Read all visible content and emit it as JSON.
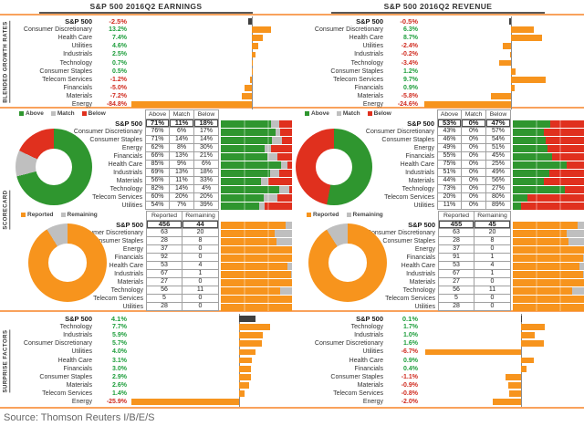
{
  "page": {
    "source_line": "Source: Thomson Reuters I/B/E/S",
    "sidebar": {
      "growth_label": "BLENDED GROWTH RATES",
      "scorecard_label": "SCORECARD",
      "surprise_label": "SURPRISE FACTORS"
    },
    "legends": {
      "scorecard": [
        "Above",
        "Match",
        "Below"
      ],
      "reported": [
        "Reported",
        "Remaining"
      ]
    },
    "colors": {
      "orange": "#F7941D",
      "dark": "#3F3F3F",
      "green": "#2F962F",
      "red": "#E0301E",
      "gray": "#BFBFBF",
      "divider": "#F9A25C",
      "text_green": "#1E9E3C",
      "text_red": "#D02B1F",
      "axis": "#8C8C8C",
      "border": "#A0A0A0"
    }
  },
  "chart_data": {
    "earnings": {
      "title": "S&P 500 2016Q2 EARNINGS",
      "growth": {
        "type": "bar",
        "xlabel": "Blended growth rate %",
        "xlim": [
          -85,
          27
        ],
        "rows": [
          {
            "label": "S&P 500",
            "v": -2.5
          },
          {
            "label": "Consumer Discretionary",
            "v": 13.2
          },
          {
            "label": "Health Care",
            "v": 7.4
          },
          {
            "label": "Utilities",
            "v": 4.6
          },
          {
            "label": "Industrials",
            "v": 2.5
          },
          {
            "label": "Technology",
            "v": 0.7
          },
          {
            "label": "Consumer Staples",
            "v": 0.5
          },
          {
            "label": "Telecom Services",
            "v": -1.2
          },
          {
            "label": "Financials",
            "v": -5.0
          },
          {
            "label": "Materials",
            "v": -7.2
          },
          {
            "label": "Energy",
            "v": -84.8
          }
        ]
      },
      "scorecard": {
        "type": "bar",
        "stacked": true,
        "headers": [
          "Above",
          "Match",
          "Below"
        ],
        "rows": [
          {
            "label": "S&P 500",
            "above": 71,
            "match": 11,
            "below": 18
          },
          {
            "label": "Consumer Discretionary",
            "above": 76,
            "match": 6,
            "below": 17
          },
          {
            "label": "Consumer Staples",
            "above": 71,
            "match": 14,
            "below": 14
          },
          {
            "label": "Energy",
            "above": 62,
            "match": 8,
            "below": 30
          },
          {
            "label": "Financials",
            "above": 66,
            "match": 13,
            "below": 21
          },
          {
            "label": "Health Care",
            "above": 85,
            "match": 9,
            "below": 6
          },
          {
            "label": "Industrials",
            "above": 69,
            "match": 13,
            "below": 18
          },
          {
            "label": "Materials",
            "above": 56,
            "match": 11,
            "below": 33
          },
          {
            "label": "Technology",
            "above": 82,
            "match": 14,
            "below": 4
          },
          {
            "label": "Telecom Services",
            "above": 60,
            "match": 20,
            "below": 20
          },
          {
            "label": "Utilities",
            "above": 54,
            "match": 7,
            "below": 39
          }
        ]
      },
      "reported": {
        "type": "bar",
        "stacked": true,
        "headers": [
          "Reported",
          "Remaining"
        ],
        "rows": [
          {
            "label": "S&P 500",
            "reported": 456,
            "remaining": 44
          },
          {
            "label": "Consumer Discretionary",
            "reported": 63,
            "remaining": 20
          },
          {
            "label": "Consumer Staples",
            "reported": 28,
            "remaining": 8
          },
          {
            "label": "Energy",
            "reported": 37,
            "remaining": 0
          },
          {
            "label": "Financials",
            "reported": 92,
            "remaining": 0
          },
          {
            "label": "Health Care",
            "reported": 53,
            "remaining": 4
          },
          {
            "label": "Industrials",
            "reported": 67,
            "remaining": 1
          },
          {
            "label": "Materials",
            "reported": 27,
            "remaining": 0
          },
          {
            "label": "Technology",
            "reported": 56,
            "remaining": 11
          },
          {
            "label": "Telecom Services",
            "reported": 5,
            "remaining": 0
          },
          {
            "label": "Utilities",
            "reported": 28,
            "remaining": 0
          }
        ]
      },
      "surprise": {
        "type": "bar",
        "xlabel": "Surprise factor %",
        "xlim": [
          -26,
          12.5
        ],
        "rows": [
          {
            "label": "S&P 500",
            "v": 4.1
          },
          {
            "label": "Technology",
            "v": 7.7
          },
          {
            "label": "Industrials",
            "v": 5.9
          },
          {
            "label": "Consumer Discretionary",
            "v": 5.7
          },
          {
            "label": "Utilities",
            "v": 4.0
          },
          {
            "label": "Health Care",
            "v": 3.1
          },
          {
            "label": "Financials",
            "v": 3.0
          },
          {
            "label": "Consumer Staples",
            "v": 2.9
          },
          {
            "label": "Materials",
            "v": 2.6
          },
          {
            "label": "Telecom Services",
            "v": 1.4
          },
          {
            "label": "Energy",
            "v": -25.9
          }
        ]
      }
    },
    "revenue": {
      "title": "S&P 500 2016Q2 REVENUE",
      "growth": {
        "type": "bar",
        "xlabel": "Blended growth rate %",
        "xlim": [
          -25,
          20
        ],
        "rows": [
          {
            "label": "S&P 500",
            "v": -0.5
          },
          {
            "label": "Consumer Discretionary",
            "v": 6.3
          },
          {
            "label": "Health Care",
            "v": 8.7
          },
          {
            "label": "Utilities",
            "v": -2.4
          },
          {
            "label": "Industrials",
            "v": -0.2
          },
          {
            "label": "Technology",
            "v": -3.4
          },
          {
            "label": "Consumer Staples",
            "v": 1.2
          },
          {
            "label": "Telecom Services",
            "v": 9.7
          },
          {
            "label": "Financials",
            "v": 0.9
          },
          {
            "label": "Materials",
            "v": -5.8
          },
          {
            "label": "Energy",
            "v": -24.6
          }
        ]
      },
      "scorecard": {
        "type": "bar",
        "stacked": true,
        "headers": [
          "Above",
          "Match",
          "Below"
        ],
        "rows": [
          {
            "label": "S&P 500",
            "above": 53,
            "match": 0,
            "below": 47
          },
          {
            "label": "Consumer Discretionary",
            "above": 43,
            "match": 0,
            "below": 57
          },
          {
            "label": "Consumer Staples",
            "above": 46,
            "match": 0,
            "below": 54
          },
          {
            "label": "Energy",
            "above": 49,
            "match": 0,
            "below": 51
          },
          {
            "label": "Financials",
            "above": 55,
            "match": 0,
            "below": 45
          },
          {
            "label": "Health Care",
            "above": 75,
            "match": 0,
            "below": 25
          },
          {
            "label": "Industrials",
            "above": 51,
            "match": 0,
            "below": 49
          },
          {
            "label": "Materials",
            "above": 44,
            "match": 0,
            "below": 56
          },
          {
            "label": "Technology",
            "above": 73,
            "match": 0,
            "below": 27
          },
          {
            "label": "Telecom Services",
            "above": 20,
            "match": 0,
            "below": 80
          },
          {
            "label": "Utilities",
            "above": 11,
            "match": 0,
            "below": 89
          }
        ]
      },
      "reported": {
        "type": "bar",
        "stacked": true,
        "headers": [
          "Reported",
          "Remaining"
        ],
        "rows": [
          {
            "label": "S&P 500",
            "reported": 455,
            "remaining": 45
          },
          {
            "label": "Consumer Discretionary",
            "reported": 63,
            "remaining": 20
          },
          {
            "label": "Consumer Staples",
            "reported": 28,
            "remaining": 8
          },
          {
            "label": "Energy",
            "reported": 37,
            "remaining": 0
          },
          {
            "label": "Financials",
            "reported": 91,
            "remaining": 1
          },
          {
            "label": "Health Care",
            "reported": 53,
            "remaining": 4
          },
          {
            "label": "Industrials",
            "reported": 67,
            "remaining": 1
          },
          {
            "label": "Materials",
            "reported": 27,
            "remaining": 0
          },
          {
            "label": "Technology",
            "reported": 56,
            "remaining": 11
          },
          {
            "label": "Telecom Services",
            "reported": 5,
            "remaining": 0
          },
          {
            "label": "Utilities",
            "reported": 28,
            "remaining": 0
          }
        ]
      },
      "surprise": {
        "type": "bar",
        "xlabel": "Surprise factor %",
        "xlim": [
          -6.9,
          4.3
        ],
        "rows": [
          {
            "label": "S&P 500",
            "v": 0.1
          },
          {
            "label": "Technology",
            "v": 1.7
          },
          {
            "label": "Industrials",
            "v": 1.0
          },
          {
            "label": "Consumer Discretionary",
            "v": 1.6
          },
          {
            "label": "Utilities",
            "v": -6.7
          },
          {
            "label": "Health Care",
            "v": 0.9
          },
          {
            "label": "Financials",
            "v": 0.4
          },
          {
            "label": "Consumer Staples",
            "v": -1.1
          },
          {
            "label": "Materials",
            "v": -0.9
          },
          {
            "label": "Telecom Services",
            "v": -0.8
          },
          {
            "label": "Energy",
            "v": -2.0
          }
        ]
      }
    }
  }
}
